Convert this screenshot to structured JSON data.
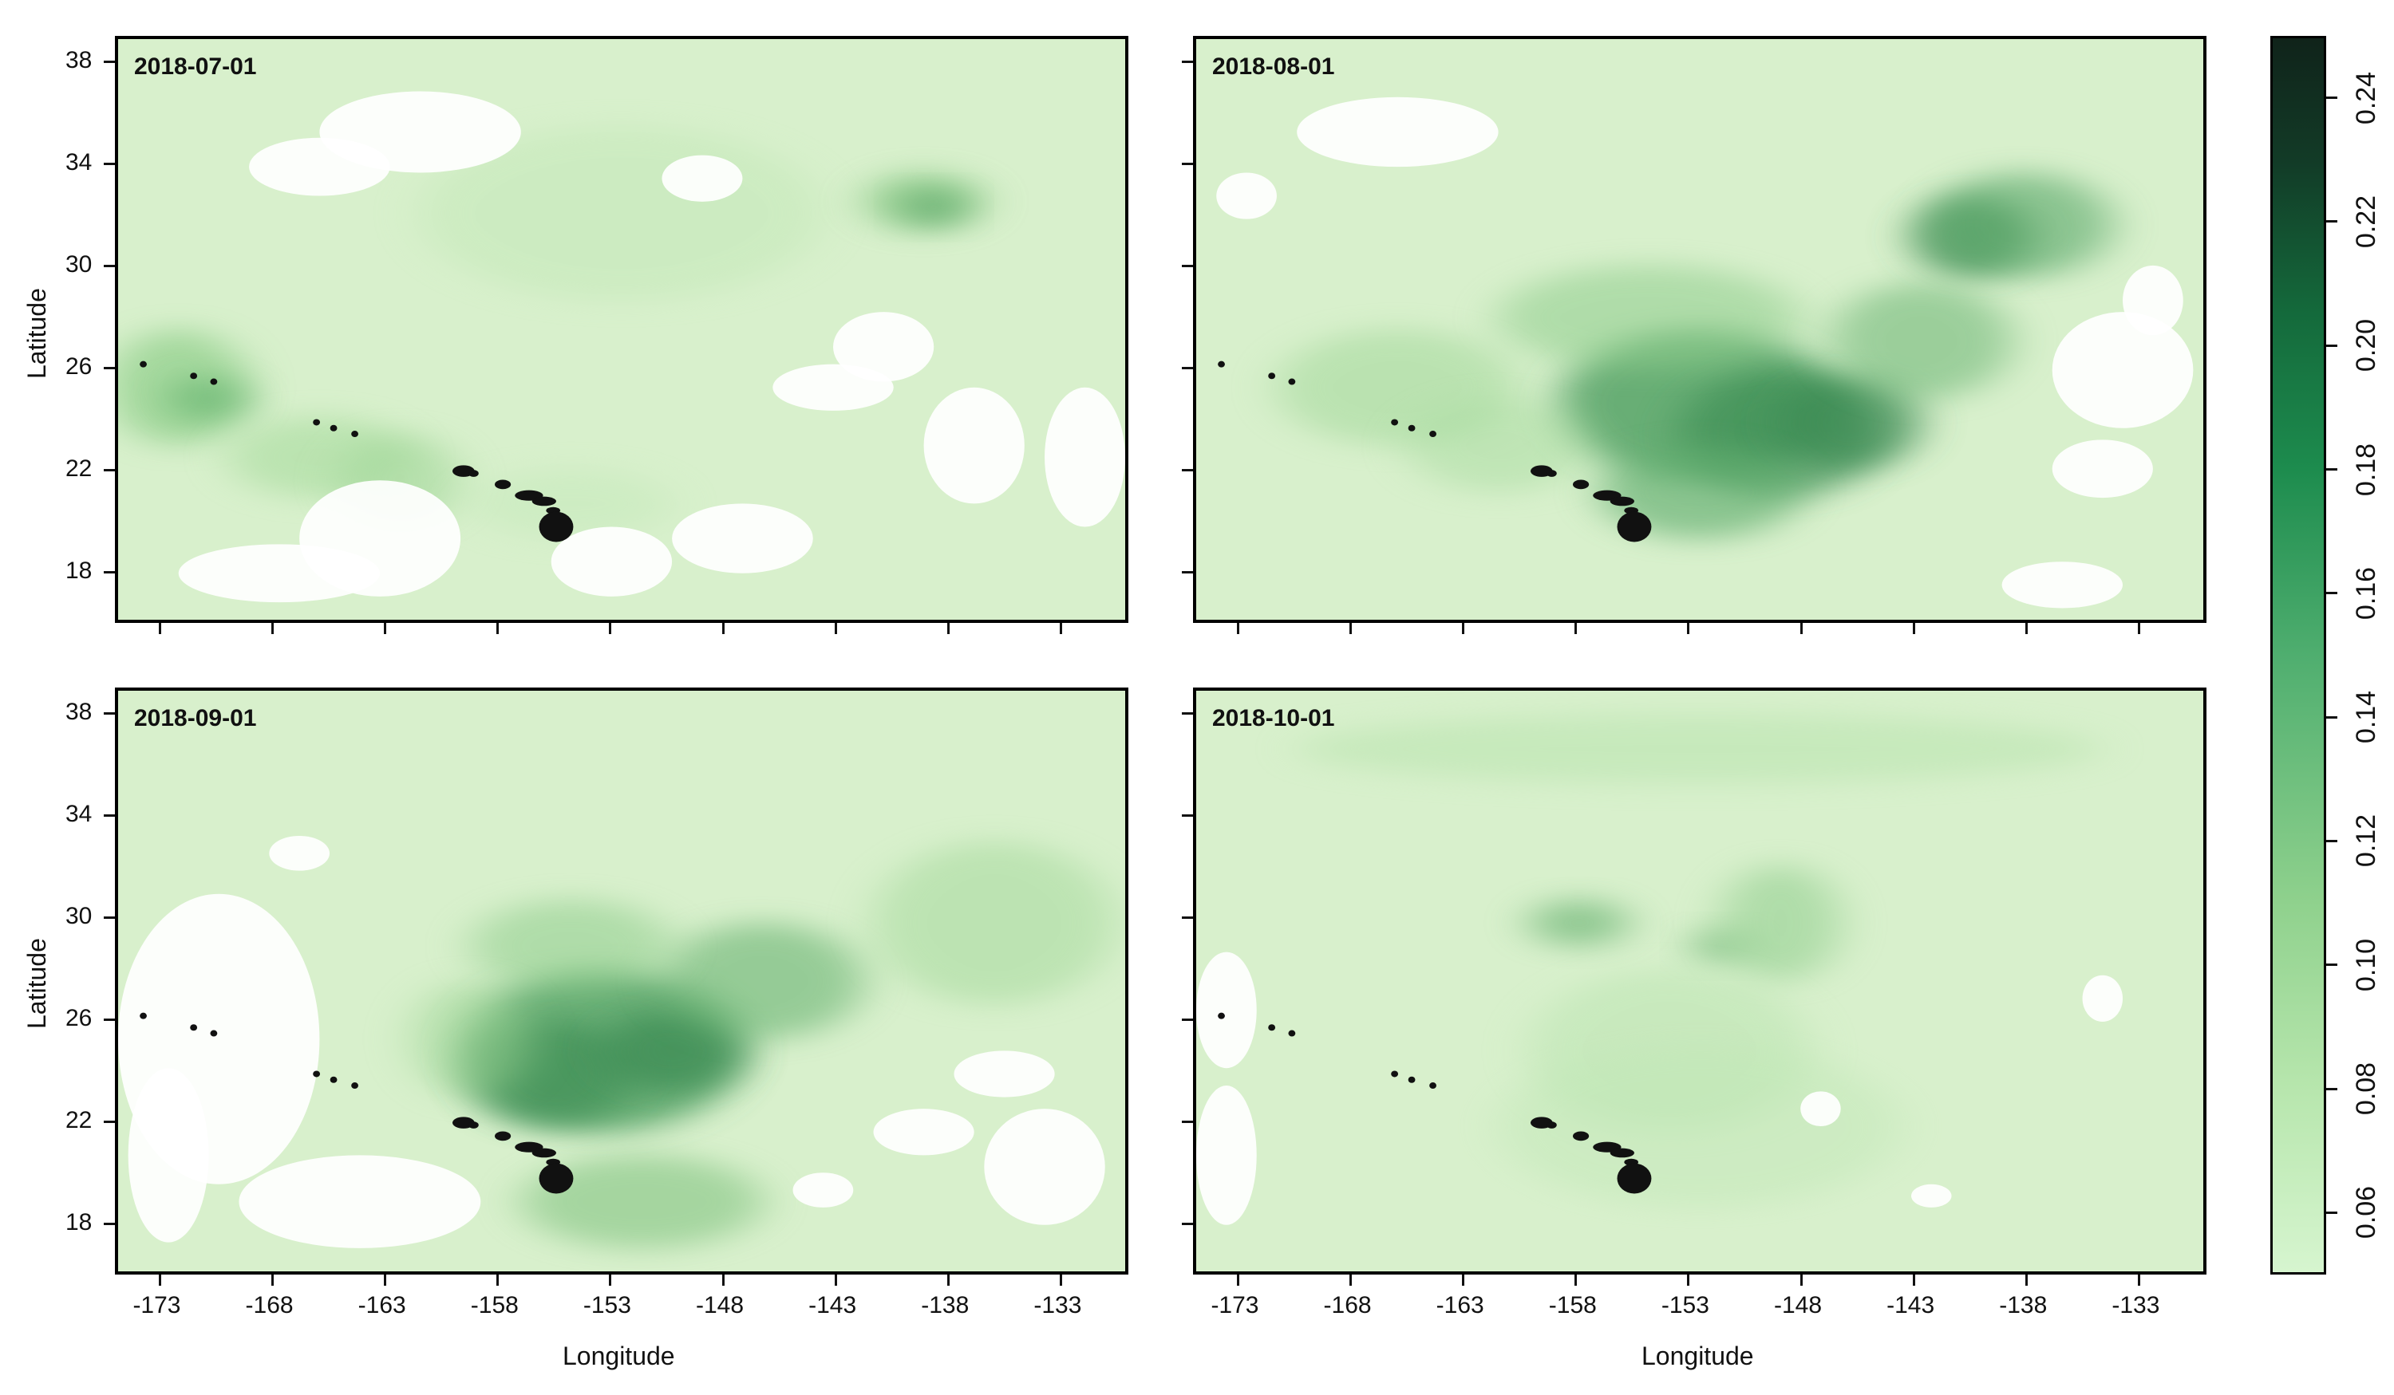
{
  "panels": [
    {
      "id": "p1",
      "date": "2018-07-01",
      "show_ylabel": true,
      "show_xticks": false
    },
    {
      "id": "p2",
      "date": "2018-08-01",
      "show_ylabel": false,
      "show_xticks": false
    },
    {
      "id": "p3",
      "date": "2018-09-01",
      "show_ylabel": true,
      "show_xticks": true
    },
    {
      "id": "p4",
      "date": "2018-10-01",
      "show_ylabel": false,
      "show_xticks": true
    }
  ],
  "axes": {
    "xlabel": "Longitude",
    "ylabel": "Latitude",
    "x_ticks": [
      "-173",
      "-168",
      "-163",
      "-158",
      "-153",
      "-148",
      "-143",
      "-138",
      "-133"
    ],
    "y_ticks": [
      "38",
      "34",
      "30",
      "26",
      "22",
      "18"
    ],
    "x_range": [
      -175,
      -130
    ],
    "y_range": [
      16,
      39
    ]
  },
  "colorbar": {
    "ticks": [
      "0.06",
      "0.08",
      "0.10",
      "0.12",
      "0.14",
      "0.16",
      "0.18",
      "0.20",
      "0.22",
      "0.24"
    ],
    "range": [
      0.05,
      0.25
    ],
    "color_low": "#d6f5cf",
    "color_mid": "#1d8c4e",
    "color_high": "#10231a"
  },
  "colors": {
    "background": "#d8f0cc",
    "land": "#111111",
    "missing": "#ffffff"
  }
}
